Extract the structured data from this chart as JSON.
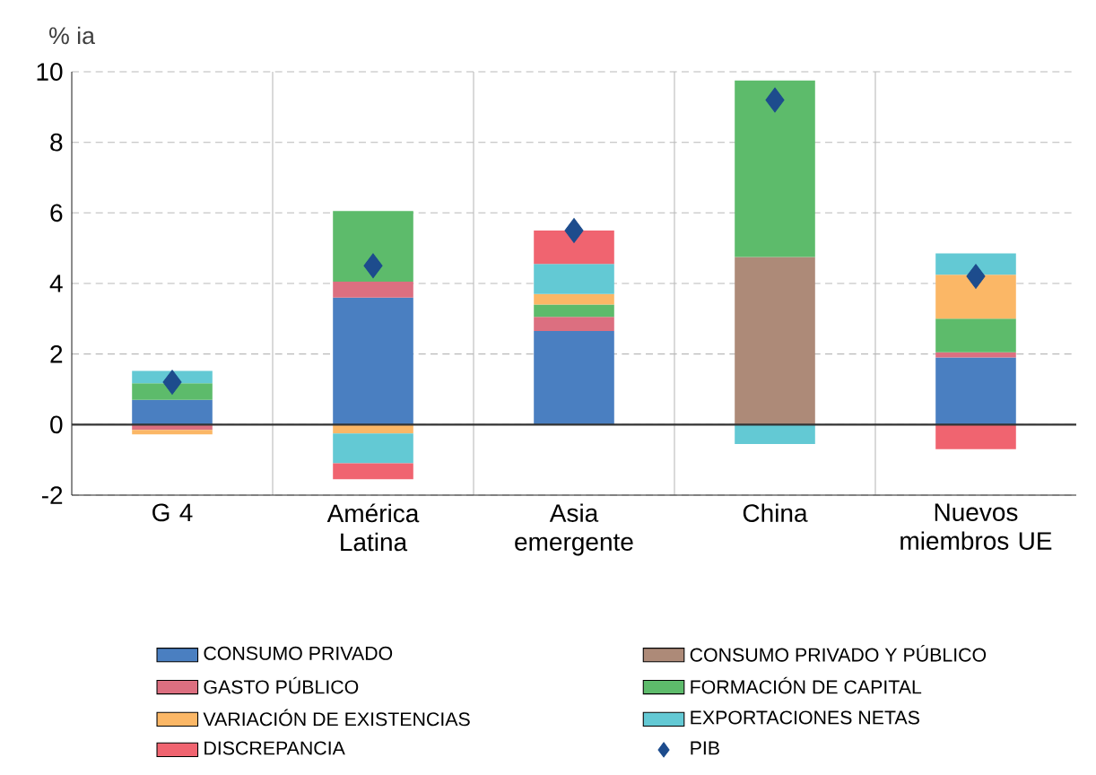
{
  "chart_data": {
    "type": "bar",
    "stacked": true,
    "ylabel": "% ia",
    "categories": [
      "G 4",
      "América Latina",
      "Asia emergente",
      "China",
      "Nuevos miembros UE"
    ],
    "ylim": [
      -2,
      10
    ],
    "yticks": [
      -2,
      0,
      2,
      4,
      6,
      8,
      10
    ],
    "grid": true,
    "legend": "bottom",
    "series": [
      {
        "name": "CONSUMO PRIVADO",
        "color": "#4a7fc1",
        "values": [
          0.7,
          3.6,
          2.65,
          null,
          1.9
        ]
      },
      {
        "name": "CONSUMO PRIVADO Y PÚBLICO",
        "color": "#ad8a78",
        "values": [
          null,
          null,
          null,
          4.75,
          null
        ]
      },
      {
        "name": "GASTO PÚBLICO",
        "color": "#dc6f80",
        "values": [
          -0.15,
          0.45,
          0.4,
          null,
          0.15
        ]
      },
      {
        "name": "FORMACIÓN DE CAPITAL",
        "color": "#5dbb6b",
        "values": [
          0.47,
          2.0,
          0.35,
          5.0,
          0.95
        ]
      },
      {
        "name": "VARIACIÓN DE EXISTENCIAS",
        "color": "#fbb766",
        "values": [
          -0.13,
          -0.25,
          0.3,
          null,
          1.25
        ]
      },
      {
        "name": "EXPORTACIONES NETAS",
        "color": "#63c9d4",
        "values": [
          0.35,
          -0.85,
          0.85,
          -0.55,
          0.6
        ]
      },
      {
        "name": "DISCREPANCIA",
        "color": "#f06470",
        "values": [
          null,
          -0.45,
          0.95,
          null,
          -0.7
        ]
      },
      {
        "name": "PIB",
        "type": "scatter",
        "marker": "diamond",
        "color": "#1d4c8d",
        "values": [
          1.2,
          4.5,
          5.5,
          9.2,
          4.2
        ]
      }
    ]
  }
}
